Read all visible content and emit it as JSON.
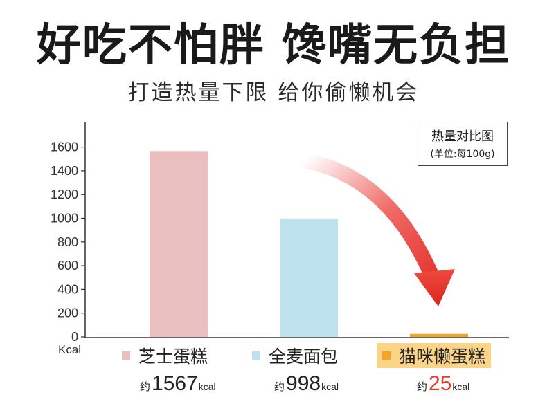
{
  "headline": "好吃不怕胖 馋嘴无负担",
  "subheadline": "打造热量下限 给你偷懒机会",
  "legend_box": {
    "title": "热量对比图",
    "unit": "(单位:每100g)"
  },
  "colors": {
    "cheesecake": "#eabfbf",
    "bread": "#bde2ee",
    "cat_cake": "#f2a623",
    "highlight": "#fbd487",
    "arrow": "#e83a34"
  },
  "chart_data": {
    "type": "bar",
    "ylabel": "Kcal",
    "ylim": [
      0,
      1700
    ],
    "yticks": [
      0,
      200,
      400,
      600,
      800,
      1000,
      1200,
      1400,
      1600
    ],
    "categories": [
      "芝士蛋糕",
      "全麦面包",
      "猫咪懒蛋糕"
    ],
    "values": [
      1567,
      998,
      25
    ],
    "value_labels": [
      {
        "prefix": "约",
        "number": "1567",
        "unit": "kcal"
      },
      {
        "prefix": "约",
        "number": "998",
        "unit": "kcal"
      },
      {
        "prefix": "约",
        "number": "25",
        "unit": "kcal"
      }
    ]
  }
}
